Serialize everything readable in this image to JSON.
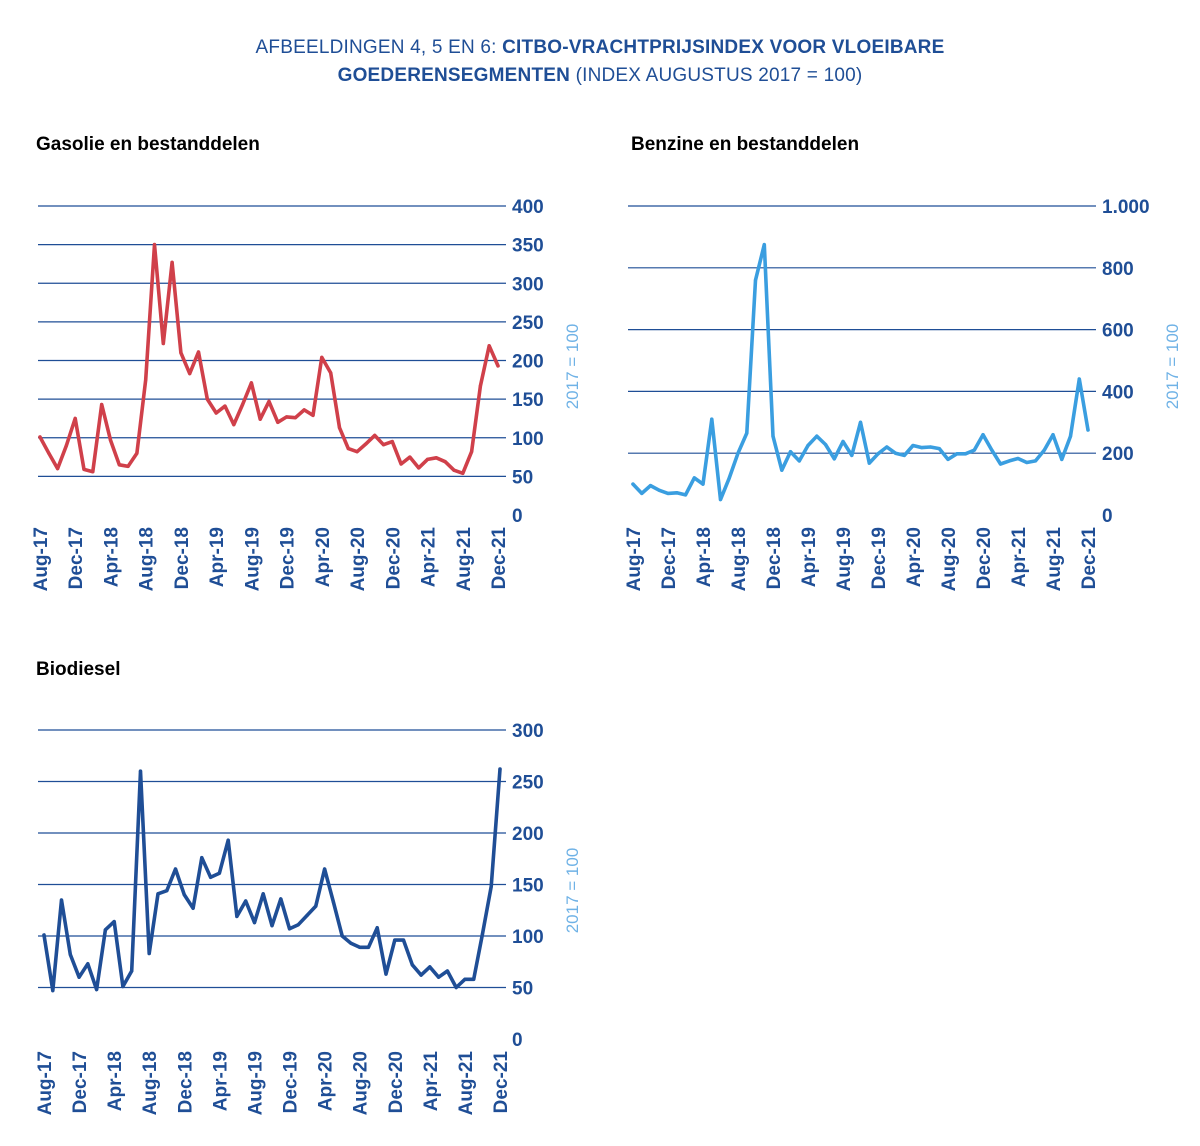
{
  "header": {
    "title_prefix": "AFBEELDINGEN 4, 5 EN 6: ",
    "title_bold_line1": "CITBO-VRACHTPRIJSINDEX VOOR VLOEIBARE",
    "title_bold_line2": "GOEDERENSEGMENTEN",
    "title_suffix": " (INDEX AUGUSTUS 2017 = 100)"
  },
  "colors": {
    "title": "#1f4e96",
    "axis": "#1f4e96",
    "grid": "#1f4e96",
    "gasolie_line": "#d0404a",
    "benzine_line": "#3a9ee0",
    "biodiesel_line": "#1f4e96",
    "ylabel": "#6fb2e6"
  },
  "chart_data": [
    {
      "id": "gasolie",
      "type": "line",
      "title": "Gasolie en bestanddelen",
      "ylabel": "2017 = 100",
      "ylim": [
        0,
        400
      ],
      "yticks": [
        0,
        50,
        100,
        150,
        200,
        250,
        300,
        350,
        400
      ],
      "ytick_labels": [
        "0",
        "50",
        "100",
        "150",
        "200",
        "250",
        "300",
        "350",
        "400"
      ],
      "xtick_labels": [
        "Aug-17",
        "Dec-17",
        "Apr-18",
        "Aug-18",
        "Dec-18",
        "Apr-19",
        "Aug-19",
        "Dec-19",
        "Apr-20",
        "Aug-20",
        "Dec-20",
        "Apr-21",
        "Aug-21",
        "Dec-21"
      ],
      "values": [
        101,
        80,
        60,
        90,
        125,
        59,
        56,
        143,
        97,
        65,
        63,
        80,
        175,
        350,
        222,
        327,
        210,
        183,
        211,
        150,
        132,
        141,
        117,
        143,
        171,
        124,
        147,
        120,
        127,
        126,
        136,
        129,
        204,
        184,
        113,
        86,
        82,
        92,
        103,
        91,
        95,
        66,
        75,
        61,
        72,
        74,
        69,
        58,
        54,
        82,
        167,
        219,
        193
      ]
    },
    {
      "id": "benzine",
      "type": "line",
      "title": "Benzine en bestanddelen",
      "ylabel": "2017 = 100",
      "ylim": [
        0,
        1000
      ],
      "yticks": [
        0,
        200,
        400,
        600,
        800,
        1000
      ],
      "ytick_labels": [
        "0",
        "200",
        "400",
        "600",
        "800",
        "1.000"
      ],
      "xtick_labels": [
        "Aug-17",
        "Dec-17",
        "Apr-18",
        "Aug-18",
        "Dec-18",
        "Apr-19",
        "Aug-19",
        "Dec-19",
        "Apr-20",
        "Aug-20",
        "Dec-20",
        "Apr-21",
        "Aug-21",
        "Dec-21"
      ],
      "values": [
        100,
        70,
        95,
        80,
        70,
        72,
        65,
        120,
        100,
        310,
        50,
        120,
        200,
        265,
        760,
        875,
        255,
        145,
        205,
        175,
        225,
        255,
        228,
        182,
        238,
        193,
        300,
        168,
        198,
        220,
        200,
        193,
        225,
        218,
        220,
        215,
        180,
        198,
        198,
        210,
        260,
        210,
        165,
        175,
        183,
        170,
        175,
        210,
        260,
        180,
        255,
        440,
        275
      ]
    },
    {
      "id": "biodiesel",
      "type": "line",
      "title": "Biodiesel",
      "ylabel": "2017 = 100",
      "ylim": [
        0,
        300
      ],
      "yticks": [
        0,
        50,
        100,
        150,
        200,
        250,
        300
      ],
      "ytick_labels": [
        "0",
        "50",
        "100",
        "150",
        "200",
        "250",
        "300"
      ],
      "xtick_labels": [
        "Aug-17",
        "Dec-17",
        "Apr-18",
        "Aug-18",
        "Dec-18",
        "Apr-19",
        "Aug-19",
        "Dec-19",
        "Apr-20",
        "Aug-20",
        "Dec-20",
        "Apr-21",
        "Aug-21",
        "Dec-21"
      ],
      "values": [
        101,
        47,
        135,
        82,
        60,
        73,
        48,
        106,
        114,
        51,
        66,
        260,
        83,
        141,
        144,
        165,
        140,
        127,
        176,
        157,
        161,
        193,
        119,
        134,
        113,
        141,
        110,
        136,
        107,
        111,
        120,
        129,
        165,
        133,
        100,
        93,
        89,
        89,
        108,
        63,
        96,
        96,
        72,
        62,
        70,
        60,
        66,
        50,
        58,
        58,
        102,
        148,
        262
      ]
    }
  ]
}
